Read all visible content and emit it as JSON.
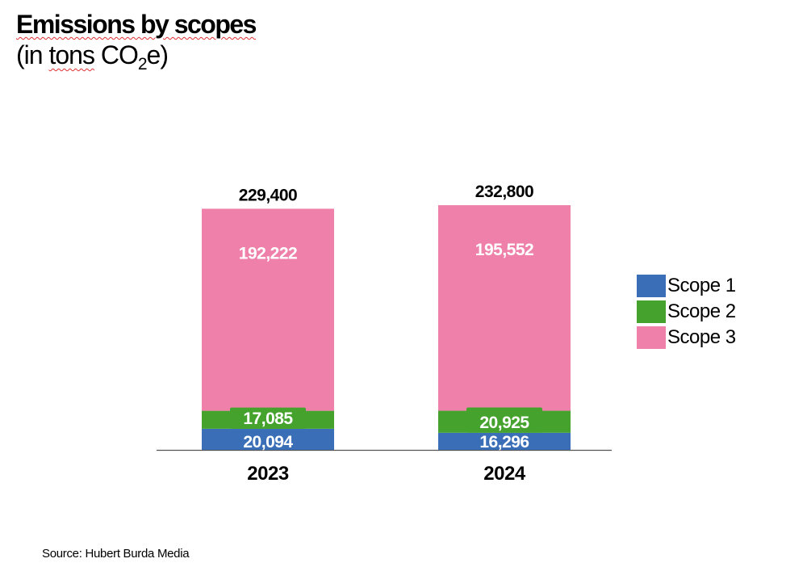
{
  "title": "Emissions by scopes",
  "subtitle": {
    "prefix": "(in ",
    "wavy": "tons",
    "mid": " CO",
    "sub": "2",
    "suffix": "e)"
  },
  "source": "Source: Hubert Burda Media",
  "colors": {
    "scope1": "#3a6fb8",
    "scope2": "#45a32d",
    "scope3": "#ee80aa",
    "axis": "#555555",
    "label_dark": "#000000",
    "label_light": "#ffffff"
  },
  "legend": [
    {
      "label": "Scope 1",
      "color": "#3a6fb8"
    },
    {
      "label": "Scope 2",
      "color": "#45a32d"
    },
    {
      "label": "Scope 3",
      "color": "#ee80aa"
    }
  ],
  "chart_data": {
    "type": "bar",
    "stacked": true,
    "categories": [
      "2023",
      "2024"
    ],
    "series": [
      {
        "name": "Scope 1",
        "values": [
          20094,
          16296
        ],
        "labels": [
          "20,094",
          "16,296"
        ]
      },
      {
        "name": "Scope 2",
        "values": [
          17085,
          20925
        ],
        "labels": [
          "17,085",
          "20,925"
        ]
      },
      {
        "name": "Scope 3",
        "values": [
          192222,
          195552
        ],
        "labels": [
          "192,222",
          "195,552"
        ]
      }
    ],
    "totals": [
      229400,
      232800
    ],
    "total_labels": [
      "229,400",
      "232,800"
    ],
    "ylim": [
      0,
      232800
    ],
    "grid": false,
    "legend_position": "right"
  }
}
